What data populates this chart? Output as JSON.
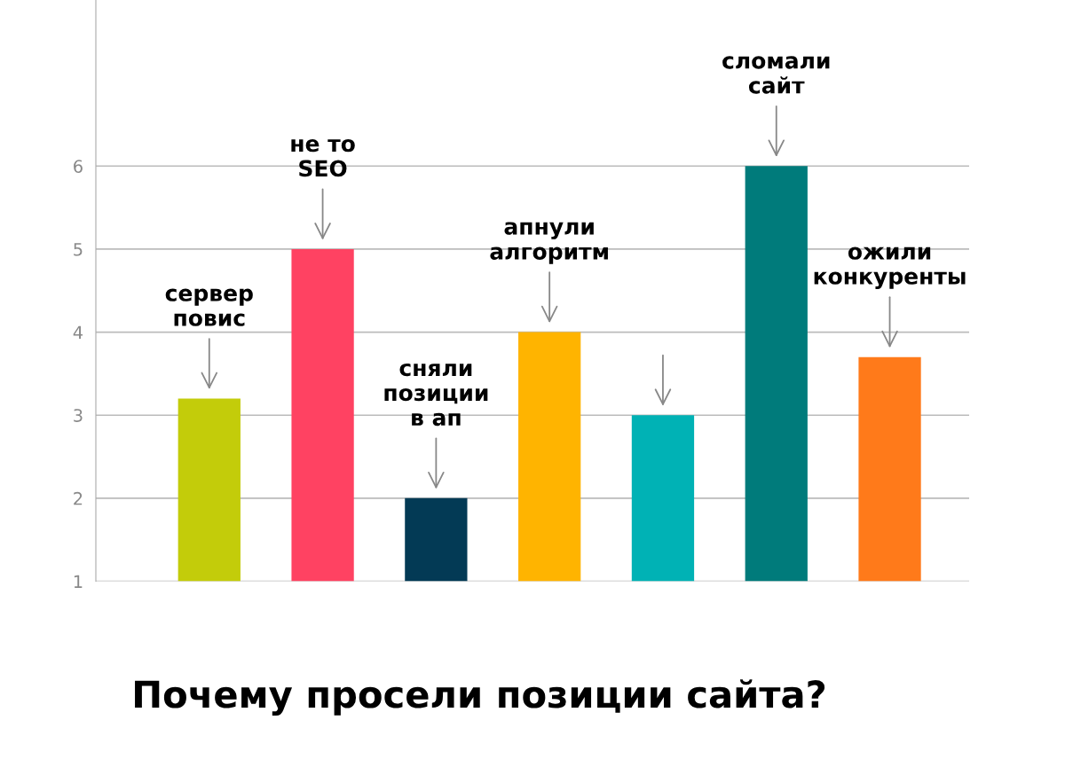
{
  "chart_data": {
    "type": "bar",
    "title": "Почему просели позиции сайта?",
    "categories": [
      "сервер\nповис",
      "не то\nSEO",
      "сняли\nпозиции\nв ап",
      "апнули\nалгоритм",
      null,
      "сломали\nсайт",
      "ожили\nконкуренты"
    ],
    "values": [
      3.2,
      5,
      2,
      4,
      3,
      6,
      3.7
    ],
    "colors": [
      "#c3cc0a",
      "#ff4262",
      "#033a55",
      "#ffb400",
      "#00b2b5",
      "#007b7b",
      "#ff7a1a"
    ],
    "ylim": [
      1,
      8
    ],
    "yticks": [
      1,
      2,
      3,
      4,
      5,
      6
    ],
    "grid": "y"
  }
}
